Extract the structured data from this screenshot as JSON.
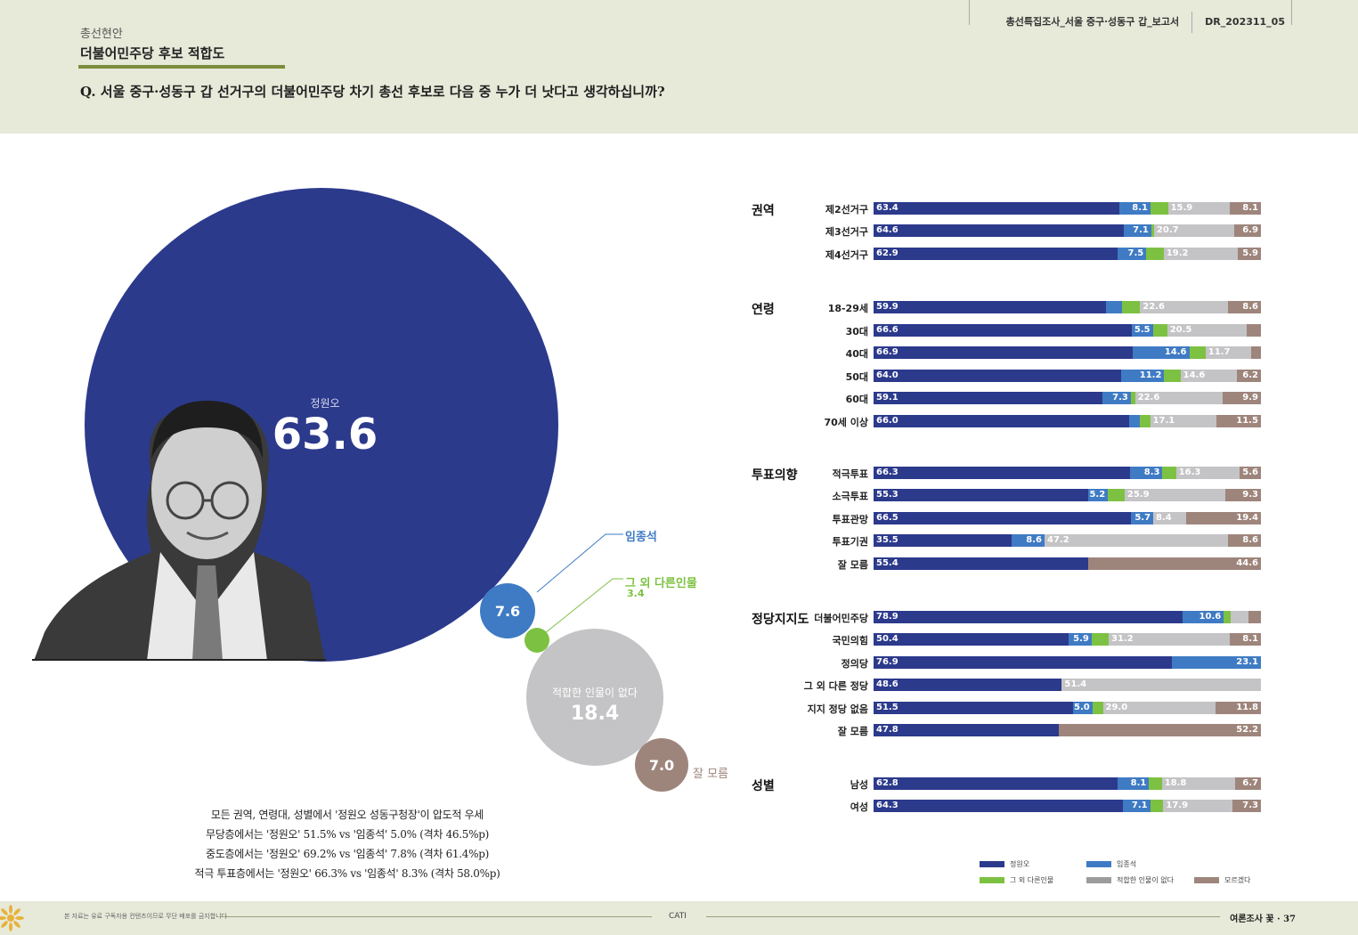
{
  "header": {
    "section": "총선현안",
    "title": "더불어민주당 후보 적합도",
    "question": "Q. 서울 중구·성동구 갑 선거구의 더불어민주당 차기 총선 후보로 다음 중 누가 더 낫다고 생각하십니까?",
    "report_name": "총선특집조사_서울 중구·성동구 갑_보고서",
    "report_code": "DR_202311_05"
  },
  "colors": {
    "jung": "#2c3a8c",
    "lim": "#3f7bc4",
    "other": "#7dc142",
    "none": "#c4c4c6",
    "dk": "#9e857c",
    "header_bg": "#e7e9d9",
    "accent": "#7b8d3a"
  },
  "bubbles": {
    "jung": {
      "name": "정원오",
      "value": "63.6"
    },
    "lim": {
      "name": "임종석",
      "value": "7.6"
    },
    "other": {
      "name": "그 외 다른인물",
      "value": "3.4"
    },
    "none": {
      "name": "적합한 인물이 없다",
      "value": "18.4"
    },
    "dk": {
      "name": "잘 모름",
      "value": "7.0"
    }
  },
  "summary": [
    "모든 권역, 연령대, 성별에서 '정원오 성동구청장'이 압도적 우세",
    "무당층에서는 '정원오' 51.5% vs '임종석' 5.0% (격차 46.5%p)",
    "중도층에서는 '정원오' 69.2% vs '임종석' 7.8% (격차 61.4%p)",
    "적극 투표층에서는 '정원오' 66.3% vs '임종석' 8.3% (격차 58.0%p)"
  ],
  "chart_data": [
    {
      "type": "pie",
      "title": "더불어민주당 후보 적합도",
      "categories": [
        "정원오",
        "임종석",
        "그 외 다른인물",
        "적합한 인물이 없다",
        "잘 모름"
      ],
      "values": [
        63.6,
        7.6,
        3.4,
        18.4,
        7.0
      ]
    },
    {
      "type": "bar",
      "stacked": true,
      "orientation": "horizontal",
      "series": [
        {
          "name": "정원오",
          "color": "#2c3a8c"
        },
        {
          "name": "임종석",
          "color": "#3f7bc4"
        },
        {
          "name": "그 외 다른인물",
          "color": "#7dc142"
        },
        {
          "name": "적합한 인물이 없다",
          "color": "#c4c4c6"
        },
        {
          "name": "모르겠다",
          "color": "#9e857c"
        }
      ],
      "groups": [
        {
          "title": "권역",
          "rows": [
            {
              "label": "제2선거구",
              "values": [
                63.4,
                8.1,
                4.5,
                15.9,
                8.1
              ],
              "labels": [
                "63.4",
                "8.1",
                "",
                "15.9",
                "8.1"
              ]
            },
            {
              "label": "제3선거구",
              "values": [
                64.6,
                7.1,
                0.7,
                20.7,
                6.9
              ],
              "labels": [
                "64.6",
                "7.1",
                "",
                "20.7",
                "6.9"
              ]
            },
            {
              "label": "제4선거구",
              "values": [
                62.9,
                7.5,
                4.5,
                19.2,
                5.9
              ],
              "labels": [
                "62.9",
                "7.5",
                "",
                "19.2",
                "5.9"
              ]
            }
          ]
        },
        {
          "title": "연령",
          "rows": [
            {
              "label": "18-29세",
              "values": [
                59.9,
                4.3,
                4.6,
                22.6,
                8.6
              ],
              "labels": [
                "59.9",
                "",
                "",
                "22.6",
                "8.6"
              ]
            },
            {
              "label": "30대",
              "values": [
                66.6,
                5.5,
                3.7,
                20.5,
                3.7
              ],
              "labels": [
                "66.6",
                "5.5",
                "",
                "20.5",
                ""
              ]
            },
            {
              "label": "40대",
              "values": [
                66.9,
                14.6,
                4.2,
                11.7,
                2.6
              ],
              "labels": [
                "66.9",
                "14.6",
                "",
                "11.7",
                ""
              ]
            },
            {
              "label": "50대",
              "values": [
                64.0,
                11.2,
                4.2,
                14.6,
                6.2
              ],
              "labels": [
                "64.0",
                "11.2",
                "",
                "14.6",
                "6.2"
              ]
            },
            {
              "label": "60대",
              "values": [
                59.1,
                7.3,
                1.1,
                22.6,
                9.9
              ],
              "labels": [
                "59.1",
                "7.3",
                "",
                "22.6",
                "9.9"
              ]
            },
            {
              "label": "70세 이상",
              "values": [
                66.0,
                2.7,
                2.7,
                17.1,
                11.5
              ],
              "labels": [
                "66.0",
                "",
                "",
                "17.1",
                "11.5"
              ]
            }
          ]
        },
        {
          "title": "투표의향",
          "rows": [
            {
              "label": "적극투표",
              "values": [
                66.3,
                8.3,
                3.5,
                16.3,
                5.6
              ],
              "labels": [
                "66.3",
                "8.3",
                "",
                "16.3",
                "5.6"
              ]
            },
            {
              "label": "소극투표",
              "values": [
                55.3,
                5.2,
                4.3,
                25.9,
                9.3
              ],
              "labels": [
                "55.3",
                "5.2",
                "",
                "25.9",
                "9.3"
              ]
            },
            {
              "label": "투표관망",
              "values": [
                66.5,
                5.7,
                0,
                8.4,
                19.4
              ],
              "labels": [
                "66.5",
                "5.7",
                "",
                "8.4",
                "19.4"
              ]
            },
            {
              "label": "투표기권",
              "values": [
                35.5,
                8.6,
                0,
                47.2,
                8.6
              ],
              "labels": [
                "35.5",
                "8.6",
                "",
                "47.2",
                "8.6"
              ]
            },
            {
              "label": "잘 모름",
              "values": [
                55.4,
                0,
                0,
                0,
                44.6
              ],
              "labels": [
                "55.4",
                "",
                "",
                "",
                "44.6"
              ]
            }
          ]
        },
        {
          "title": "정당지지도",
          "rows": [
            {
              "label": "더불어민주당",
              "values": [
                78.9,
                10.6,
                1.8,
                4.5,
                3.2
              ],
              "labels": [
                "78.9",
                "10.6",
                "",
                "",
                ""
              ]
            },
            {
              "label": "국민의힘",
              "values": [
                50.4,
                5.9,
                4.4,
                31.2,
                8.1
              ],
              "labels": [
                "50.4",
                "5.9",
                "",
                "31.2",
                "8.1"
              ]
            },
            {
              "label": "정의당",
              "values": [
                76.9,
                23.1,
                0,
                0,
                0
              ],
              "labels": [
                "76.9",
                "23.1",
                "",
                "",
                ""
              ]
            },
            {
              "label": "그 외 다른 정당",
              "values": [
                48.6,
                0,
                0,
                51.4,
                0
              ],
              "labels": [
                "48.6",
                "",
                "",
                "51.4",
                ""
              ]
            },
            {
              "label": "지지 정당 없음",
              "values": [
                51.5,
                5.0,
                2.7,
                29.0,
                11.8
              ],
              "labels": [
                "51.5",
                "5.0",
                "",
                "29.0",
                "11.8"
              ]
            },
            {
              "label": "잘 모름",
              "values": [
                47.8,
                0,
                0,
                0,
                52.2
              ],
              "labels": [
                "47.8",
                "",
                "",
                "",
                "52.2"
              ]
            }
          ]
        },
        {
          "title": "성별",
          "rows": [
            {
              "label": "남성",
              "values": [
                62.8,
                8.1,
                3.3,
                18.8,
                6.7
              ],
              "labels": [
                "62.8",
                "8.1",
                "",
                "18.8",
                "6.7"
              ]
            },
            {
              "label": "여성",
              "values": [
                64.3,
                7.1,
                3.4,
                17.9,
                7.3
              ],
              "labels": [
                "64.3",
                "7.1",
                "",
                "17.9",
                "7.3"
              ]
            }
          ]
        }
      ]
    }
  ],
  "legend": [
    "정원오",
    "임종석",
    "그 외 다른인물",
    "적합한 인물이 없다",
    "모르겠다"
  ],
  "footer": {
    "note": "본 자료는 유료 구독자용 컨텐츠이므로 무단 배포를 금지합니다",
    "method": "CATI",
    "magazine": "여론조사 꽃",
    "page": "37"
  }
}
